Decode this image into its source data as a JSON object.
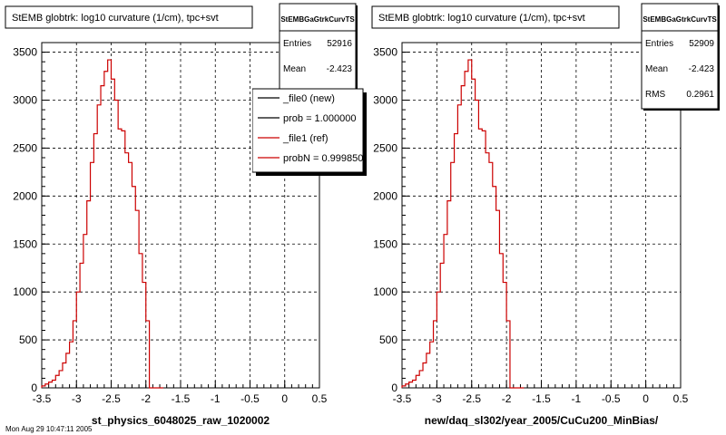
{
  "chart_data": [
    {
      "type": "histogram",
      "title": "StEMB globtrk: log10 curvature (1/cm), tpc+svt",
      "stats": {
        "name": "StEMBGaGtrkCurvTS",
        "rows": [
          {
            "label": "Entries",
            "value": "52916"
          },
          {
            "label": "Mean",
            "value": "-2.423"
          }
        ]
      },
      "xlabel": "st_physics_6048025_raw_1020002",
      "ylabel": "",
      "xlim": [
        -3.5,
        0.5
      ],
      "ylim": [
        0,
        3600
      ],
      "xticks": [
        "-3.5",
        "-3",
        "-2.5",
        "-2",
        "-1.5",
        "-1",
        "-0.5",
        "0",
        "0.5"
      ],
      "yticks": [
        "0",
        "500",
        "1000",
        "1500",
        "2000",
        "2500",
        "3000",
        "3500"
      ],
      "grid": true,
      "legend": {
        "placement": "top-right",
        "entries": [
          {
            "label": "_file0 (new)",
            "color": "#000000"
          },
          {
            "label": "prob = 1.000000",
            "color": "#000000"
          },
          {
            "label": "_file1 (ref)",
            "color": "#cc0000"
          },
          {
            "label": "probN = 0.999850",
            "color": "#cc0000"
          }
        ]
      },
      "series": [
        {
          "name": "_file1 (ref)",
          "color": "#cc0000",
          "bin_width": 0.05,
          "x": [
            -3.5,
            -3.45,
            -3.4,
            -3.35,
            -3.3,
            -3.25,
            -3.2,
            -3.15,
            -3.1,
            -3.05,
            -3.0,
            -2.95,
            -2.9,
            -2.85,
            -2.8,
            -2.75,
            -2.7,
            -2.65,
            -2.6,
            -2.55,
            -2.5,
            -2.45,
            -2.4,
            -2.35,
            -2.3,
            -2.25,
            -2.2,
            -2.15,
            -2.1,
            -2.05,
            -2.0,
            -1.95,
            -1.9,
            -1.85,
            -1.8
          ],
          "values": [
            20,
            40,
            60,
            80,
            130,
            180,
            260,
            360,
            480,
            700,
            1000,
            1300,
            1600,
            1950,
            2350,
            2650,
            2950,
            3150,
            3300,
            3420,
            3220,
            3000,
            2700,
            2680,
            2450,
            2350,
            2100,
            1850,
            1400,
            1100,
            700,
            0,
            0,
            0,
            0
          ]
        }
      ]
    },
    {
      "type": "histogram",
      "title": "StEMB globtrk: log10 curvature (1/cm), tpc+svt",
      "stats": {
        "name": "StEMBGaGtrkCurvTS",
        "rows": [
          {
            "label": "Entries",
            "value": "52909"
          },
          {
            "label": "Mean",
            "value": "-2.423"
          },
          {
            "label": "RMS",
            "value": "0.2961"
          }
        ]
      },
      "xlabel": "new/daq_sl302/year_2005/CuCu200_MinBias/",
      "ylabel": "",
      "xlim": [
        -3.5,
        0.5
      ],
      "ylim": [
        0,
        3600
      ],
      "xticks": [
        "-3.5",
        "-3",
        "-2.5",
        "-2",
        "-1.5",
        "-1",
        "-0.5",
        "0",
        "0.5"
      ],
      "yticks": [
        "0",
        "500",
        "1000",
        "1500",
        "2000",
        "2500",
        "3000",
        "3500"
      ],
      "grid": true,
      "series": [
        {
          "name": "",
          "color": "#cc0000",
          "bin_width": 0.05,
          "x": [
            -3.5,
            -3.45,
            -3.4,
            -3.35,
            -3.3,
            -3.25,
            -3.2,
            -3.15,
            -3.1,
            -3.05,
            -3.0,
            -2.95,
            -2.9,
            -2.85,
            -2.8,
            -2.75,
            -2.7,
            -2.65,
            -2.6,
            -2.55,
            -2.5,
            -2.45,
            -2.4,
            -2.35,
            -2.3,
            -2.25,
            -2.2,
            -2.15,
            -2.1,
            -2.05,
            -2.0,
            -1.95,
            -1.9,
            -1.85,
            -1.8
          ],
          "values": [
            20,
            40,
            60,
            80,
            130,
            180,
            260,
            360,
            480,
            700,
            1000,
            1300,
            1600,
            1950,
            2350,
            2650,
            2950,
            3150,
            3300,
            3420,
            3220,
            3000,
            2700,
            2680,
            2450,
            2350,
            2100,
            1850,
            1400,
            1100,
            700,
            0,
            0,
            0,
            0
          ]
        }
      ]
    }
  ],
  "footer": "Mon Aug 29 10:47:11 2005"
}
